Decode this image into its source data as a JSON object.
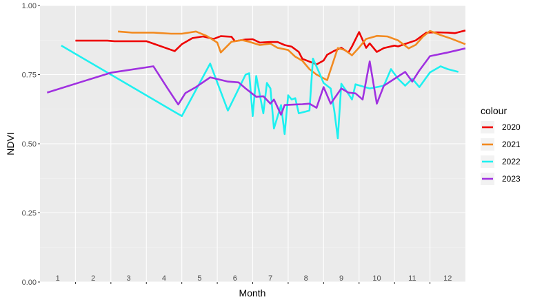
{
  "chart_data": {
    "type": "line",
    "xlabel": "Month",
    "ylabel": "NDVI",
    "xlim": [
      0.5,
      12.5
    ],
    "ylim": [
      0,
      1
    ],
    "y_ticks": [
      0,
      0.25,
      0.5,
      0.75,
      1
    ],
    "y_tick_labels": [
      "0.00",
      "0.25",
      "0.50",
      "0.75",
      "1.00"
    ],
    "x_tick_labels": [
      "1",
      "2",
      "3",
      "4",
      "5",
      "6",
      "7",
      "8",
      "9",
      "10",
      "11",
      "12"
    ],
    "grid": true,
    "legend_title": "colour",
    "legend_position": "right",
    "series": [
      {
        "name": "2020",
        "color": "#ee0000",
        "points": [
          [
            1.5,
            0.873
          ],
          [
            2.4,
            0.873
          ],
          [
            2.6,
            0.871
          ],
          [
            3.5,
            0.871
          ],
          [
            4.3,
            0.835
          ],
          [
            4.5,
            0.86
          ],
          [
            4.8,
            0.882
          ],
          [
            5.1,
            0.888
          ],
          [
            5.4,
            0.879
          ],
          [
            5.6,
            0.889
          ],
          [
            5.9,
            0.887
          ],
          [
            6.0,
            0.871
          ],
          [
            6.3,
            0.877
          ],
          [
            6.5,
            0.878
          ],
          [
            6.7,
            0.866
          ],
          [
            7.0,
            0.868
          ],
          [
            7.2,
            0.868
          ],
          [
            7.4,
            0.857
          ],
          [
            7.6,
            0.851
          ],
          [
            7.8,
            0.832
          ],
          [
            7.9,
            0.807
          ],
          [
            8.1,
            0.797
          ],
          [
            8.3,
            0.787
          ],
          [
            8.5,
            0.801
          ],
          [
            8.6,
            0.822
          ],
          [
            8.8,
            0.836
          ],
          [
            9.0,
            0.847
          ],
          [
            9.2,
            0.83
          ],
          [
            9.3,
            0.852
          ],
          [
            9.5,
            0.904
          ],
          [
            9.7,
            0.847
          ],
          [
            9.8,
            0.863
          ],
          [
            10.0,
            0.832
          ],
          [
            10.2,
            0.846
          ],
          [
            10.5,
            0.855
          ],
          [
            10.6,
            0.852
          ],
          [
            10.8,
            0.861
          ],
          [
            11.1,
            0.874
          ],
          [
            11.4,
            0.902
          ],
          [
            11.7,
            0.903
          ],
          [
            12.0,
            0.902
          ],
          [
            12.2,
            0.9
          ],
          [
            12.5,
            0.91
          ]
        ]
      },
      {
        "name": "2021",
        "color": "#f28a20",
        "points": [
          [
            2.7,
            0.906
          ],
          [
            3.1,
            0.902
          ],
          [
            3.7,
            0.902
          ],
          [
            4.2,
            0.898
          ],
          [
            4.5,
            0.898
          ],
          [
            4.9,
            0.906
          ],
          [
            5.2,
            0.89
          ],
          [
            5.5,
            0.866
          ],
          [
            5.6,
            0.83
          ],
          [
            5.9,
            0.869
          ],
          [
            6.2,
            0.875
          ],
          [
            6.4,
            0.869
          ],
          [
            6.7,
            0.857
          ],
          [
            7.0,
            0.862
          ],
          [
            7.2,
            0.847
          ],
          [
            7.5,
            0.839
          ],
          [
            7.7,
            0.815
          ],
          [
            7.9,
            0.8
          ],
          [
            8.1,
            0.77
          ],
          [
            8.3,
            0.75
          ],
          [
            8.6,
            0.73
          ],
          [
            8.9,
            0.846
          ],
          [
            9.1,
            0.839
          ],
          [
            9.3,
            0.82
          ],
          [
            9.5,
            0.848
          ],
          [
            9.7,
            0.879
          ],
          [
            10.0,
            0.89
          ],
          [
            10.3,
            0.888
          ],
          [
            10.6,
            0.874
          ],
          [
            10.9,
            0.845
          ],
          [
            11.1,
            0.858
          ],
          [
            11.3,
            0.887
          ],
          [
            11.5,
            0.908
          ],
          [
            11.8,
            0.893
          ],
          [
            12.1,
            0.88
          ],
          [
            12.5,
            0.86
          ]
        ]
      },
      {
        "name": "2022",
        "color": "#1ef0f0",
        "points": [
          [
            1.1,
            0.855
          ],
          [
            4.5,
            0.6
          ],
          [
            5.3,
            0.79
          ],
          [
            5.8,
            0.62
          ],
          [
            6.3,
            0.75
          ],
          [
            6.4,
            0.755
          ],
          [
            6.5,
            0.6
          ],
          [
            6.6,
            0.745
          ],
          [
            6.8,
            0.61
          ],
          [
            6.9,
            0.72
          ],
          [
            7.0,
            0.7
          ],
          [
            7.1,
            0.555
          ],
          [
            7.3,
            0.64
          ],
          [
            7.4,
            0.535
          ],
          [
            7.5,
            0.675
          ],
          [
            7.6,
            0.66
          ],
          [
            7.7,
            0.665
          ],
          [
            7.8,
            0.61
          ],
          [
            8.1,
            0.62
          ],
          [
            8.2,
            0.808
          ],
          [
            8.4,
            0.75
          ],
          [
            8.5,
            0.72
          ],
          [
            8.7,
            0.7
          ],
          [
            8.8,
            0.62
          ],
          [
            8.9,
            0.52
          ],
          [
            9.0,
            0.717
          ],
          [
            9.2,
            0.68
          ],
          [
            9.3,
            0.66
          ],
          [
            9.4,
            0.715
          ],
          [
            9.8,
            0.7
          ],
          [
            10.2,
            0.71
          ],
          [
            10.4,
            0.77
          ],
          [
            10.6,
            0.735
          ],
          [
            10.8,
            0.71
          ],
          [
            11.0,
            0.735
          ],
          [
            11.2,
            0.705
          ],
          [
            11.5,
            0.758
          ],
          [
            11.8,
            0.78
          ],
          [
            12.0,
            0.77
          ],
          [
            12.3,
            0.76
          ]
        ]
      },
      {
        "name": "2023",
        "color": "#a030e0",
        "points": [
          [
            0.7,
            0.685
          ],
          [
            2.5,
            0.757
          ],
          [
            3.7,
            0.78
          ],
          [
            4.1,
            0.7
          ],
          [
            4.4,
            0.642
          ],
          [
            4.6,
            0.683
          ],
          [
            4.9,
            0.705
          ],
          [
            5.3,
            0.74
          ],
          [
            5.8,
            0.725
          ],
          [
            6.1,
            0.722
          ],
          [
            6.3,
            0.7
          ],
          [
            6.6,
            0.67
          ],
          [
            6.8,
            0.672
          ],
          [
            7.0,
            0.645
          ],
          [
            7.1,
            0.66
          ],
          [
            7.3,
            0.605
          ],
          [
            7.4,
            0.64
          ],
          [
            7.7,
            0.642
          ],
          [
            7.9,
            0.643
          ],
          [
            8.1,
            0.645
          ],
          [
            8.3,
            0.63
          ],
          [
            8.5,
            0.705
          ],
          [
            8.7,
            0.645
          ],
          [
            9.0,
            0.7
          ],
          [
            9.2,
            0.685
          ],
          [
            9.4,
            0.682
          ],
          [
            9.6,
            0.66
          ],
          [
            9.8,
            0.798
          ],
          [
            10.0,
            0.645
          ],
          [
            10.2,
            0.71
          ],
          [
            10.8,
            0.76
          ],
          [
            11.0,
            0.725
          ],
          [
            11.2,
            0.765
          ],
          [
            11.5,
            0.817
          ],
          [
            12.0,
            0.83
          ],
          [
            12.5,
            0.845
          ]
        ]
      }
    ]
  }
}
